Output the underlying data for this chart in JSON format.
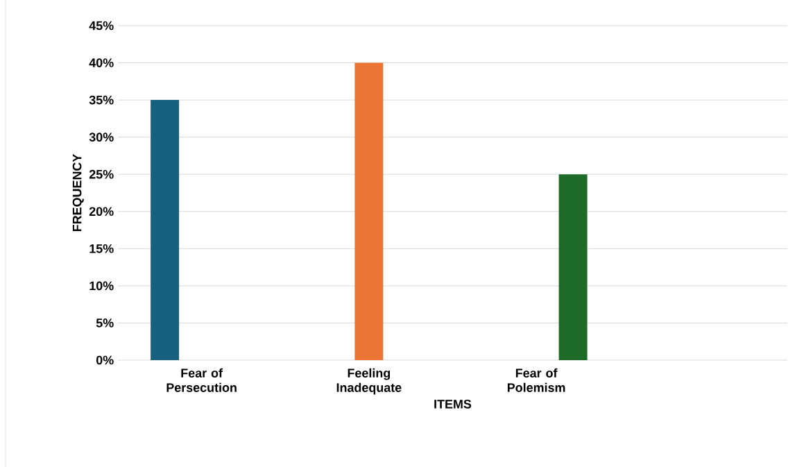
{
  "chart_data": {
    "type": "bar",
    "xlabel": "ITEMS",
    "ylabel": "FREQUENCY",
    "categories": [
      "Fear of Persecution",
      "Feeling Inadequate",
      "Fear of Polemism",
      null
    ],
    "series": [
      {
        "color": "#17607f",
        "values": [
          35,
          null,
          null,
          null
        ]
      },
      {
        "color": "#e97434",
        "values": [
          null,
          40,
          null,
          null
        ]
      },
      {
        "color": "#1e6b29",
        "values": [
          null,
          null,
          25,
          null
        ]
      }
    ],
    "ylim": [
      0,
      45
    ],
    "yticks": [
      {
        "value": 0,
        "label": "0%"
      },
      {
        "value": 5,
        "label": "5%"
      },
      {
        "value": 10,
        "label": "10%"
      },
      {
        "value": 15,
        "label": "15%"
      },
      {
        "value": 20,
        "label": "20%"
      },
      {
        "value": 25,
        "label": "25%"
      },
      {
        "value": 30,
        "label": "30%"
      },
      {
        "value": 35,
        "label": "35%"
      },
      {
        "value": 40,
        "label": "40%"
      },
      {
        "value": 45,
        "label": "45%"
      }
    ],
    "grid": "y"
  }
}
